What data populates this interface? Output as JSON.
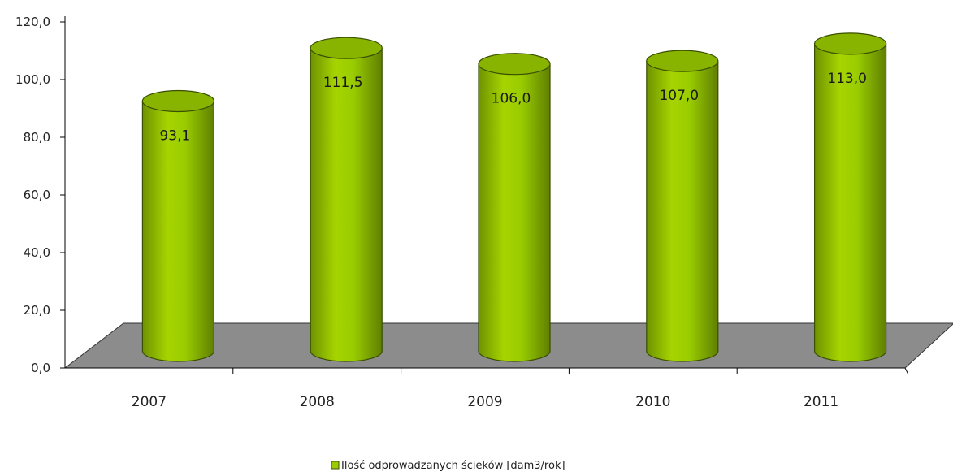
{
  "chart_data": {
    "type": "bar",
    "style": "3d-cylinder",
    "categories": [
      "2007",
      "2008",
      "2009",
      "2010",
      "2011"
    ],
    "series": [
      {
        "name": "Ilość odprowadzanych ścieków [dam3/rok]",
        "values": [
          93.1,
          111.5,
          106.0,
          107.0,
          113.0
        ],
        "labels": [
          "93,1",
          "111,5",
          "106,0",
          "107,0",
          "113,0"
        ],
        "color": "#99cc00"
      }
    ],
    "ylim": [
      0,
      120
    ],
    "yticks": [
      0,
      20,
      40,
      60,
      80,
      100,
      120
    ],
    "ytick_labels": [
      "0,0",
      "20,0",
      "40,0",
      "60,0",
      "80,0",
      "100,0",
      "120,0"
    ],
    "grid": false,
    "floor_color": "#8c8c8c",
    "legend": "bottom-center"
  }
}
